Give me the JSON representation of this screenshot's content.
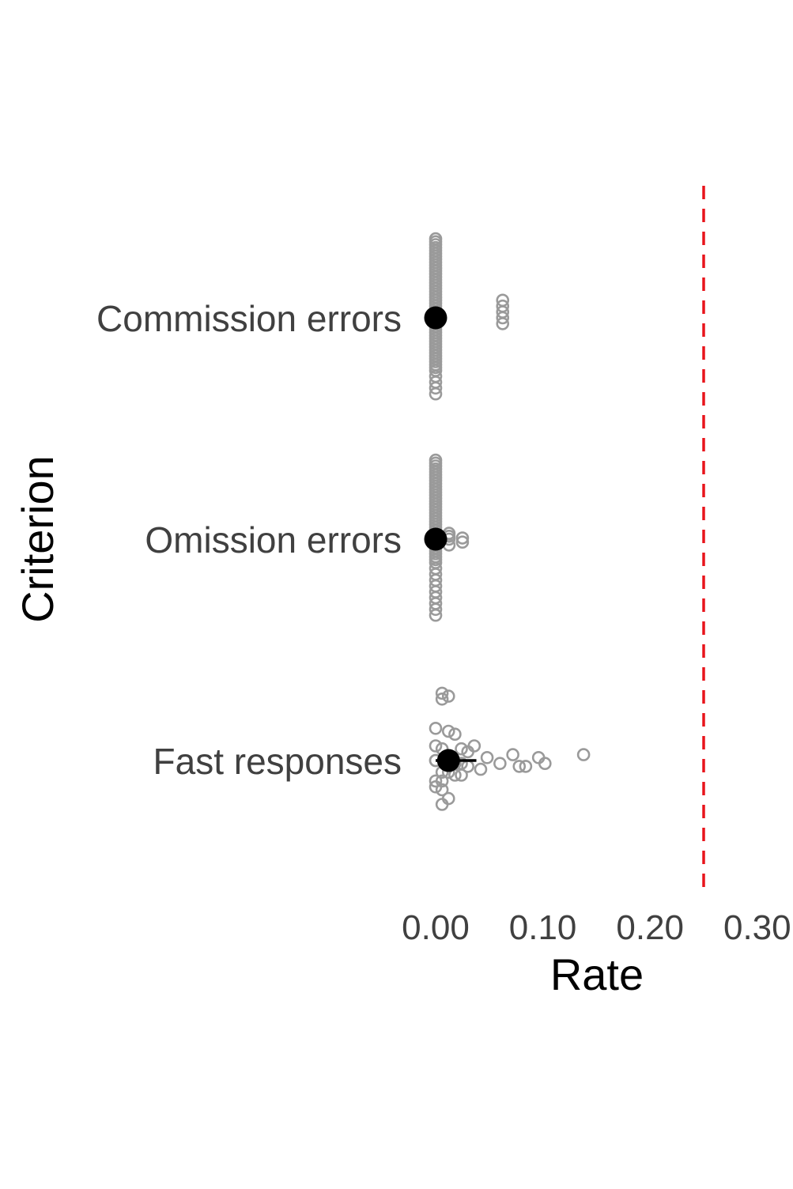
{
  "chart_data": {
    "type": "scatter",
    "title": "",
    "xlabel": "Rate",
    "ylabel": "Criterion",
    "xlim": [
      0,
      0.3
    ],
    "x_ticks": [
      0,
      0.1,
      0.2,
      0.3
    ],
    "x_tick_labels": [
      "0.00",
      "0.10",
      "0.20",
      "0.30"
    ],
    "categories": [
      "Commission errors",
      "Omission errors",
      "Fast responses"
    ],
    "grid": false,
    "legend": "none",
    "reference_line": {
      "x": 0.25,
      "style": "dashed",
      "color": "#e8141b"
    },
    "colors": {
      "raw": "#9a9a9a",
      "summary": "#000000",
      "threshold": "#e8141b"
    },
    "summary": [
      {
        "category": "Commission errors",
        "mean": 0.0,
        "error_low": 0.0,
        "error_high": 0.0
      },
      {
        "category": "Omission errors",
        "mean": 0.0,
        "error_low": 0.0,
        "error_high": 0.0
      },
      {
        "category": "Fast responses",
        "mean": 0.012,
        "error_low": 0.0,
        "error_high": 0.038
      }
    ],
    "raw_points": [
      {
        "category": "Commission errors",
        "values": [
          0,
          0,
          0,
          0,
          0,
          0,
          0,
          0,
          0,
          0,
          0,
          0,
          0,
          0,
          0,
          0,
          0,
          0,
          0,
          0,
          0,
          0,
          0,
          0,
          0,
          0,
          0,
          0,
          0,
          0,
          0,
          0,
          0,
          0,
          0,
          0,
          0,
          0,
          0,
          0,
          0,
          0,
          0,
          0,
          0,
          0,
          0,
          0,
          0,
          0,
          0.0625,
          0.0625,
          0.0625,
          0.0625,
          0.0625
        ],
        "offsets": [
          -13,
          -12,
          -11,
          -10,
          -9,
          -8,
          -7,
          -6,
          -5,
          -4,
          -3,
          -2,
          -1,
          0,
          1,
          2,
          3,
          4,
          5,
          6,
          7,
          8,
          9,
          10,
          11,
          12,
          13,
          -13.5,
          -12.5,
          -11.5,
          -10.5,
          -9.5,
          -8.5,
          -7.5,
          -6.5,
          -5.5,
          -4.5,
          -3.5,
          -2.5,
          -1.5,
          -0.5,
          0.5,
          1.5,
          2.5,
          3.5,
          4.5,
          5.5,
          6.5,
          7.5,
          8.5,
          -3,
          -2,
          -1,
          0,
          1
        ]
      },
      {
        "category": "Omission errors",
        "values": [
          0,
          0,
          0,
          0,
          0,
          0,
          0,
          0,
          0,
          0,
          0,
          0,
          0,
          0,
          0,
          0,
          0,
          0,
          0,
          0,
          0,
          0,
          0,
          0,
          0,
          0,
          0,
          0,
          0,
          0,
          0,
          0,
          0,
          0,
          0,
          0,
          0,
          0,
          0,
          0,
          0,
          0,
          0,
          0,
          0,
          0.0125,
          0.0125,
          0.0125,
          0.0125,
          0.025,
          0.025
        ],
        "offsets": [
          -13,
          -12,
          -11,
          -10,
          -9,
          -8,
          -7,
          -6,
          -5,
          -4,
          -3,
          -2,
          -1,
          0,
          1,
          2,
          3,
          4,
          5,
          6,
          7,
          8,
          9,
          10,
          11,
          12,
          13,
          -13.5,
          -12.5,
          -11.5,
          -10.5,
          -9.5,
          -8.5,
          -7.5,
          -6.5,
          -5.5,
          -4.5,
          -3.5,
          -2.5,
          -1.5,
          -0.5,
          0.5,
          1.5,
          2.5,
          3.5,
          -1,
          0,
          1,
          -0.5,
          0.5,
          -0.2
        ]
      },
      {
        "category": "Fast responses",
        "values": [
          0.006,
          0.012,
          0.006,
          0,
          0.012,
          0.018,
          0,
          0.006,
          0.024,
          0.036,
          0,
          0.012,
          0.03,
          0.048,
          0.072,
          0.096,
          0.138,
          0,
          0.012,
          0.018,
          0.06,
          0.084,
          0.102,
          0.024,
          0.03,
          0.042,
          0.078,
          0.006,
          0.012,
          0.018,
          0.024,
          0,
          0.006,
          0,
          0.006,
          0.012,
          0.006
        ],
        "offsets": [
          -11.5,
          -11,
          -10.5,
          -5.5,
          -5,
          -4.5,
          -2.5,
          -2,
          -2,
          -2.5,
          0,
          0,
          -1.5,
          -0.5,
          -1,
          -0.5,
          -1,
          0,
          0,
          0.5,
          0.5,
          1,
          0.5,
          0.5,
          1,
          1.5,
          1,
          2,
          2,
          2.5,
          2.5,
          3.5,
          3.5,
          4.5,
          5,
          6.5,
          7.5
        ]
      }
    ]
  }
}
